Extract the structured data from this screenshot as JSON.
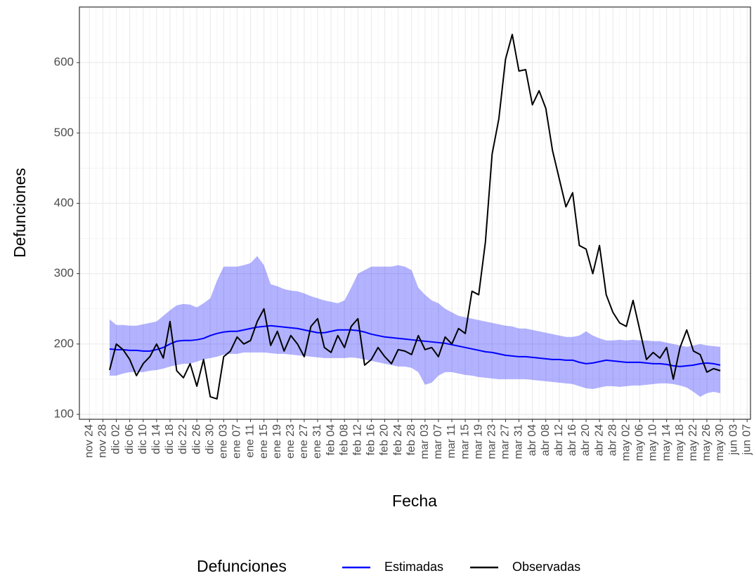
{
  "chart_data": {
    "type": "line",
    "xlabel": "Fecha",
    "ylabel": "Defunciones",
    "legend_title": "Defunciones",
    "legend_position": "bottom",
    "grid": true,
    "xlim": [
      -3,
      197
    ],
    "ylim": [
      93,
      679
    ],
    "yticks": [
      100,
      200,
      300,
      400,
      500,
      600
    ],
    "xticks": [
      {
        "value": 0,
        "label": "nov 24"
      },
      {
        "value": 4,
        "label": "nov 28"
      },
      {
        "value": 8,
        "label": "dic 02"
      },
      {
        "value": 12,
        "label": "dic 06"
      },
      {
        "value": 16,
        "label": "dic 10"
      },
      {
        "value": 20,
        "label": "dic 14"
      },
      {
        "value": 24,
        "label": "dic 18"
      },
      {
        "value": 28,
        "label": "dic 22"
      },
      {
        "value": 32,
        "label": "dic 26"
      },
      {
        "value": 36,
        "label": "dic 30"
      },
      {
        "value": 40,
        "label": "ene 03"
      },
      {
        "value": 44,
        "label": "ene 07"
      },
      {
        "value": 48,
        "label": "ene 11"
      },
      {
        "value": 52,
        "label": "ene 15"
      },
      {
        "value": 56,
        "label": "ene 19"
      },
      {
        "value": 60,
        "label": "ene 23"
      },
      {
        "value": 64,
        "label": "ene 27"
      },
      {
        "value": 68,
        "label": "ene 31"
      },
      {
        "value": 72,
        "label": "feb 04"
      },
      {
        "value": 76,
        "label": "feb 08"
      },
      {
        "value": 80,
        "label": "feb 12"
      },
      {
        "value": 84,
        "label": "feb 16"
      },
      {
        "value": 88,
        "label": "feb 20"
      },
      {
        "value": 92,
        "label": "feb 24"
      },
      {
        "value": 96,
        "label": "feb 28"
      },
      {
        "value": 100,
        "label": "mar 03"
      },
      {
        "value": 104,
        "label": "mar 07"
      },
      {
        "value": 108,
        "label": "mar 11"
      },
      {
        "value": 112,
        "label": "mar 15"
      },
      {
        "value": 116,
        "label": "mar 19"
      },
      {
        "value": 120,
        "label": "mar 23"
      },
      {
        "value": 124,
        "label": "mar 27"
      },
      {
        "value": 128,
        "label": "mar 31"
      },
      {
        "value": 132,
        "label": "abr 04"
      },
      {
        "value": 136,
        "label": "abr 08"
      },
      {
        "value": 140,
        "label": "abr 12"
      },
      {
        "value": 144,
        "label": "abr 16"
      },
      {
        "value": 148,
        "label": "abr 20"
      },
      {
        "value": 152,
        "label": "abr 24"
      },
      {
        "value": 156,
        "label": "abr 28"
      },
      {
        "value": 160,
        "label": "may 02"
      },
      {
        "value": 164,
        "label": "may 06"
      },
      {
        "value": 168,
        "label": "may 10"
      },
      {
        "value": 172,
        "label": "may 14"
      },
      {
        "value": 176,
        "label": "may 18"
      },
      {
        "value": 180,
        "label": "may 22"
      },
      {
        "value": 184,
        "label": "may 26"
      },
      {
        "value": 188,
        "label": "may 30"
      },
      {
        "value": 192,
        "label": "jun 03"
      },
      {
        "value": 196,
        "label": "jun 07"
      }
    ],
    "x": [
      6,
      8,
      10,
      12,
      14,
      16,
      18,
      20,
      22,
      24,
      26,
      28,
      30,
      32,
      34,
      36,
      38,
      40,
      42,
      44,
      46,
      48,
      50,
      52,
      54,
      56,
      58,
      60,
      62,
      64,
      66,
      68,
      70,
      72,
      74,
      76,
      78,
      80,
      82,
      84,
      86,
      88,
      90,
      92,
      94,
      96,
      98,
      100,
      102,
      104,
      106,
      108,
      110,
      112,
      114,
      116,
      118,
      120,
      122,
      124,
      126,
      128,
      130,
      132,
      134,
      136,
      138,
      140,
      142,
      144,
      146,
      148,
      150,
      152,
      154,
      156,
      158,
      160,
      162,
      164,
      166,
      168,
      170,
      172,
      174,
      176,
      178,
      180,
      182,
      184,
      186,
      188
    ],
    "band": {
      "color": "#0000ff",
      "opacity": 0.3,
      "upper": [
        235,
        227,
        227,
        226,
        226,
        228,
        230,
        232,
        240,
        248,
        255,
        257,
        256,
        252,
        258,
        265,
        290,
        310,
        310,
        310,
        312,
        315,
        325,
        312,
        285,
        282,
        278,
        276,
        275,
        272,
        268,
        265,
        262,
        260,
        258,
        262,
        280,
        300,
        305,
        310,
        310,
        310,
        310,
        312,
        310,
        305,
        280,
        270,
        262,
        258,
        250,
        245,
        240,
        238,
        236,
        234,
        232,
        230,
        228,
        226,
        225,
        222,
        222,
        220,
        218,
        216,
        214,
        212,
        210,
        210,
        212,
        218,
        212,
        208,
        205,
        205,
        206,
        205,
        206,
        205,
        205,
        204,
        204,
        202,
        200,
        198,
        196,
        198,
        200,
        198,
        197,
        196
      ],
      "lower": [
        155,
        155,
        158,
        160,
        160,
        160,
        162,
        163,
        165,
        168,
        170,
        172,
        172,
        175,
        178,
        180,
        182,
        185,
        186,
        186,
        188,
        188,
        188,
        188,
        187,
        186,
        186,
        185,
        184,
        183,
        182,
        181,
        180,
        180,
        180,
        180,
        181,
        180,
        178,
        176,
        174,
        172,
        170,
        168,
        168,
        166,
        160,
        142,
        145,
        155,
        160,
        160,
        158,
        156,
        155,
        153,
        152,
        151,
        150,
        150,
        150,
        150,
        150,
        149,
        148,
        147,
        146,
        145,
        144,
        143,
        140,
        137,
        136,
        138,
        140,
        140,
        139,
        140,
        141,
        141,
        142,
        143,
        144,
        144,
        143,
        141,
        138,
        132,
        125,
        130,
        132,
        130
      ]
    },
    "series": [
      {
        "name": "Estimadas",
        "color": "#0000ff",
        "values": [
          193,
          192,
          192,
          191,
          191,
          190,
          190,
          192,
          195,
          200,
          204,
          205,
          205,
          206,
          208,
          212,
          215,
          217,
          218,
          218,
          220,
          222,
          224,
          225,
          226,
          225,
          224,
          223,
          222,
          220,
          218,
          216,
          216,
          218,
          220,
          220,
          220,
          219,
          217,
          214,
          212,
          210,
          209,
          208,
          207,
          206,
          205,
          204,
          203,
          202,
          201,
          199,
          197,
          195,
          193,
          191,
          189,
          188,
          186,
          184,
          183,
          182,
          182,
          181,
          180,
          179,
          178,
          178,
          177,
          177,
          174,
          172,
          173,
          175,
          177,
          176,
          175,
          174,
          174,
          174,
          173,
          172,
          172,
          171,
          169,
          168,
          169,
          170,
          172,
          173,
          172,
          170
        ]
      },
      {
        "name": "Observadas",
        "color": "#000000",
        "values": [
          163,
          200,
          192,
          178,
          155,
          172,
          182,
          200,
          180,
          232,
          162,
          152,
          172,
          140,
          178,
          125,
          122,
          182,
          190,
          210,
          200,
          205,
          232,
          250,
          198,
          218,
          190,
          212,
          200,
          182,
          225,
          236,
          195,
          188,
          212,
          195,
          225,
          236,
          170,
          178,
          195,
          182,
          172,
          192,
          190,
          185,
          212,
          192,
          195,
          182,
          210,
          200,
          222,
          215,
          275,
          270,
          345,
          470,
          520,
          605,
          640,
          588,
          590,
          540,
          560,
          535,
          475,
          435,
          395,
          415,
          340,
          335,
          300,
          340,
          270,
          245,
          230,
          225,
          262,
          220,
          178,
          188,
          180,
          195,
          150,
          195,
          220,
          190,
          185,
          160,
          165,
          162
        ]
      }
    ]
  }
}
